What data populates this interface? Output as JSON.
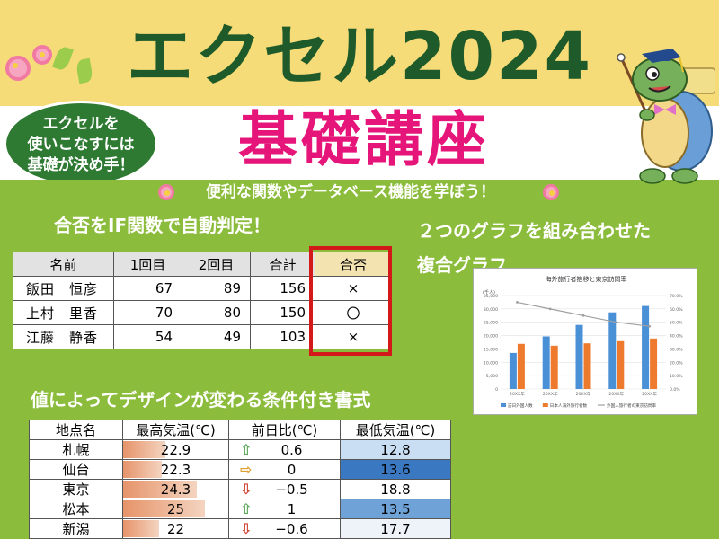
{
  "header": {
    "title": "エクセル2024",
    "subtitle": "基礎講座",
    "badge_lines": [
      "エクセルを",
      "使いこなすには",
      "基礎が決め手！"
    ],
    "tagline": "便利な関数やデータベース機能を学ぼう！"
  },
  "section1": {
    "heading": "合否をIF関数で自動判定！",
    "columns": [
      "名前",
      "1回目",
      "2回目",
      "合計",
      "合否"
    ],
    "rows": [
      [
        "飯田　恒彦",
        "67",
        "89",
        "156",
        "×"
      ],
      [
        "上村　里香",
        "70",
        "80",
        "150",
        "〇"
      ],
      [
        "江藤　静香",
        "54",
        "49",
        "103",
        "×"
      ]
    ]
  },
  "section2": {
    "heading_line1": "２つのグラフを組み合わせた",
    "heading_line2": "複合グラフ"
  },
  "section3": {
    "heading": "値によってデザインが変わる条件付き書式",
    "columns": [
      "地点名",
      "最高気温(℃)",
      "前日比(℃)",
      "最低気温(℃)"
    ],
    "rows": [
      {
        "place": "札幌",
        "high": "22.9",
        "high_level": 0.4,
        "arrow": "up",
        "diff": "0.6",
        "low": "12.8",
        "low_color": "#c9def2"
      },
      {
        "place": "仙台",
        "high": "22.3",
        "high_level": 0.37,
        "arrow": "right",
        "diff": "0",
        "low": "13.6",
        "low_color": "#3a78c2"
      },
      {
        "place": "東京",
        "high": "24.3",
        "high_level": 0.7,
        "arrow": "down",
        "diff": "−0.5",
        "low": "18.8",
        "low_color": "#ffffff"
      },
      {
        "place": "松本",
        "high": "25",
        "high_level": 0.78,
        "arrow": "up",
        "diff": "1",
        "low": "13.5",
        "low_color": "#6fa3d8"
      },
      {
        "place": "新潟",
        "high": "22",
        "high_level": 0.34,
        "arrow": "down",
        "diff": "−0.6",
        "low": "17.7",
        "low_color": "#eef3fa"
      }
    ],
    "arrow_colors": {
      "up": "#5aa85a",
      "right": "#e0a030",
      "down": "#d04030"
    }
  },
  "chart_data": {
    "type": "bar",
    "title": "海外旅行者推移と東京訪問率",
    "unit_label": "(千人)",
    "categories": [
      "20XX年",
      "20XX年",
      "20XX年",
      "20XX年",
      "20XX年"
    ],
    "ylim": [
      0,
      35000
    ],
    "y_ticks": [
      "35,000",
      "30,000",
      "25,000",
      "20,000",
      "15,000",
      "10,000",
      "5,000",
      "0"
    ],
    "y2lim": [
      0,
      70
    ],
    "y2_ticks": [
      "70.0%",
      "60.0%",
      "50.0%",
      "40.0%",
      "30.0%",
      "20.0%",
      "10.0%",
      "0.0%"
    ],
    "series": [
      {
        "name": "訪日外国人数",
        "type": "bar",
        "color": "#4a90d6",
        "values": [
          13500,
          19700,
          24000,
          28700,
          31100
        ]
      },
      {
        "name": "日本人海外旅行者数",
        "type": "bar",
        "color": "#ee7a2e",
        "values": [
          16900,
          16200,
          17100,
          17900,
          18900
        ]
      },
      {
        "name": "外国人旅行者の東京訪問率",
        "type": "line",
        "color": "#a0a0a0",
        "values": [
          65,
          60,
          55,
          50,
          47
        ]
      }
    ]
  }
}
